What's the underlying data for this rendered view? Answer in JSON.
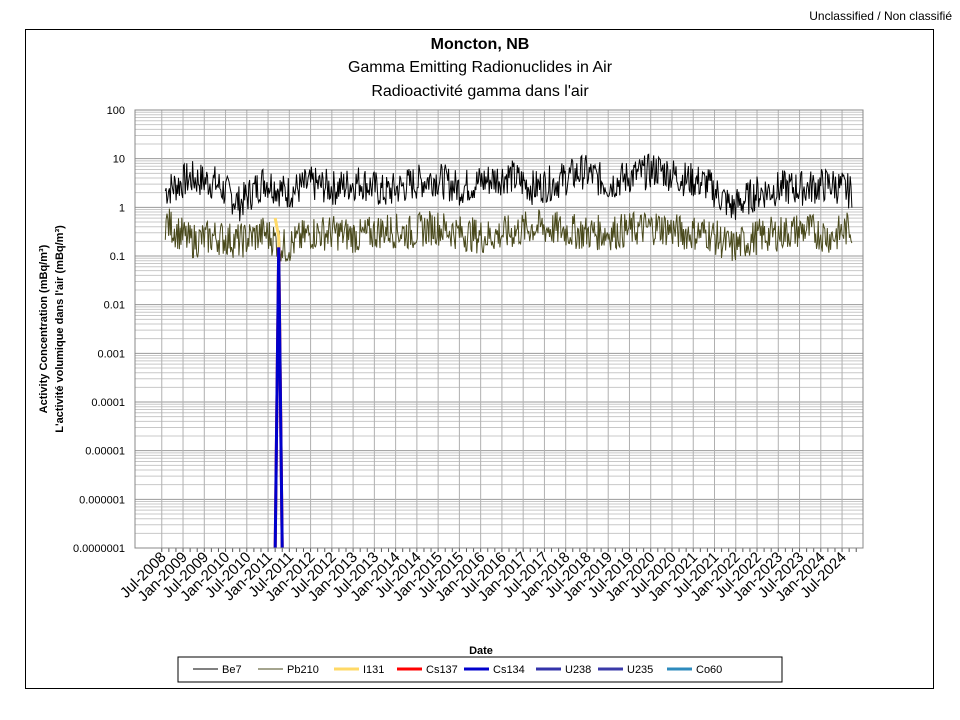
{
  "classification": "Unclassified / Non classifié",
  "chart_data": {
    "type": "line",
    "title": "Moncton, NB",
    "subtitle_en": "Gamma Emitting Radionuclides in Air",
    "subtitle_fr": "Radioactivité gamma dans l'air",
    "xlabel": "Date",
    "ylabel_en": "Activity Concentration  (mBq/m³)",
    "ylabel_fr": "L'activité volumique dans l'air (mBq/m³)",
    "y_scale": "log",
    "ylim": [
      1e-07,
      100
    ],
    "y_ticks": [
      "100",
      "10",
      "1",
      "0.1",
      "0.01",
      "0.001",
      "0.0001",
      "0.00001",
      "0.000001",
      "0.0000001"
    ],
    "x_range": [
      "2008-07",
      "2024-11"
    ],
    "x_ticks": [
      "Jul-2008",
      "Jan-2009",
      "Jul-2009",
      "Jan-2010",
      "Jul-2010",
      "Jan-2011",
      "Jul-2011",
      "Jan-2012",
      "Jul-2012",
      "Jan-2013",
      "Jul-2013",
      "Jan-2014",
      "Jul-2014",
      "Jan-2015",
      "Jul-2015",
      "Jan-2016",
      "Jul-2016",
      "Jan-2017",
      "Jul-2017",
      "Jan-2018",
      "Jul-2018",
      "Jan-2019",
      "Jul-2019",
      "Jan-2020",
      "Jul-2020",
      "Jan-2021",
      "Jul-2021",
      "Jan-2022",
      "Jul-2022",
      "Jan-2023",
      "Jul-2023",
      "Jan-2024",
      "Jul-2024"
    ],
    "grid": true,
    "legend_position": "bottom",
    "series": [
      {
        "name": "Be7",
        "color": "#000000",
        "typical": 2.5,
        "x": [
          "2008-08",
          "2009-03",
          "2009-10",
          "2010-05",
          "2010-12",
          "2011-06",
          "2012-01",
          "2012-08",
          "2013-03",
          "2013-10",
          "2014-05",
          "2014-12",
          "2015-07",
          "2016-02",
          "2016-09",
          "2017-04",
          "2017-11",
          "2018-06",
          "2019-01",
          "2019-08",
          "2020-03",
          "2020-10",
          "2021-05",
          "2021-12",
          "2022-07",
          "2023-02",
          "2023-09",
          "2024-04",
          "2024-10"
        ],
        "values": [
          2.2,
          4.0,
          3.2,
          1.2,
          3.6,
          2.0,
          3.0,
          2.5,
          3.4,
          2.0,
          3.0,
          4.0,
          2.5,
          3.5,
          4.5,
          2.5,
          3.5,
          5.5,
          3.0,
          4.5,
          6.0,
          4.0,
          3.0,
          1.0,
          2.0,
          2.5,
          2.5,
          3.0,
          2.0
        ]
      },
      {
        "name": "Pb210",
        "color": "#4a4a1c",
        "typical": 0.25,
        "x": [
          "2008-08",
          "2009-03",
          "2009-10",
          "2010-05",
          "2010-12",
          "2011-06",
          "2012-01",
          "2012-08",
          "2013-03",
          "2013-10",
          "2014-05",
          "2014-12",
          "2015-07",
          "2016-02",
          "2016-09",
          "2017-04",
          "2017-11",
          "2018-06",
          "2019-01",
          "2019-08",
          "2020-03",
          "2020-10",
          "2021-05",
          "2021-12",
          "2022-07",
          "2023-02",
          "2023-09",
          "2024-04",
          "2024-10"
        ],
        "values": [
          0.5,
          0.2,
          0.25,
          0.2,
          0.3,
          0.15,
          0.3,
          0.3,
          0.25,
          0.35,
          0.3,
          0.4,
          0.3,
          0.25,
          0.3,
          0.4,
          0.35,
          0.3,
          0.3,
          0.35,
          0.4,
          0.3,
          0.3,
          0.15,
          0.25,
          0.3,
          0.35,
          0.25,
          0.4
        ]
      },
      {
        "name": "I131",
        "color": "#ffd966",
        "x": [
          "2011-03",
          "2011-04",
          "2011-05"
        ],
        "values": [
          0.6,
          0.25,
          1e-07
        ]
      },
      {
        "name": "Cs137",
        "color": "#ff0000",
        "x": [
          "2011-03",
          "2011-04",
          "2011-05"
        ],
        "values": [
          1e-07,
          0.15,
          1e-07
        ]
      },
      {
        "name": "Cs134",
        "color": "#0000cc",
        "x": [
          "2011-03",
          "2011-04",
          "2011-05"
        ],
        "values": [
          1e-07,
          0.15,
          1e-07
        ]
      },
      {
        "name": "U238",
        "color": "#3333aa",
        "x": [],
        "values": []
      },
      {
        "name": "U235",
        "color": "#3a3aa8",
        "x": [],
        "values": []
      },
      {
        "name": "Co60",
        "color": "#2e8bbd",
        "x": [],
        "values": []
      }
    ]
  }
}
